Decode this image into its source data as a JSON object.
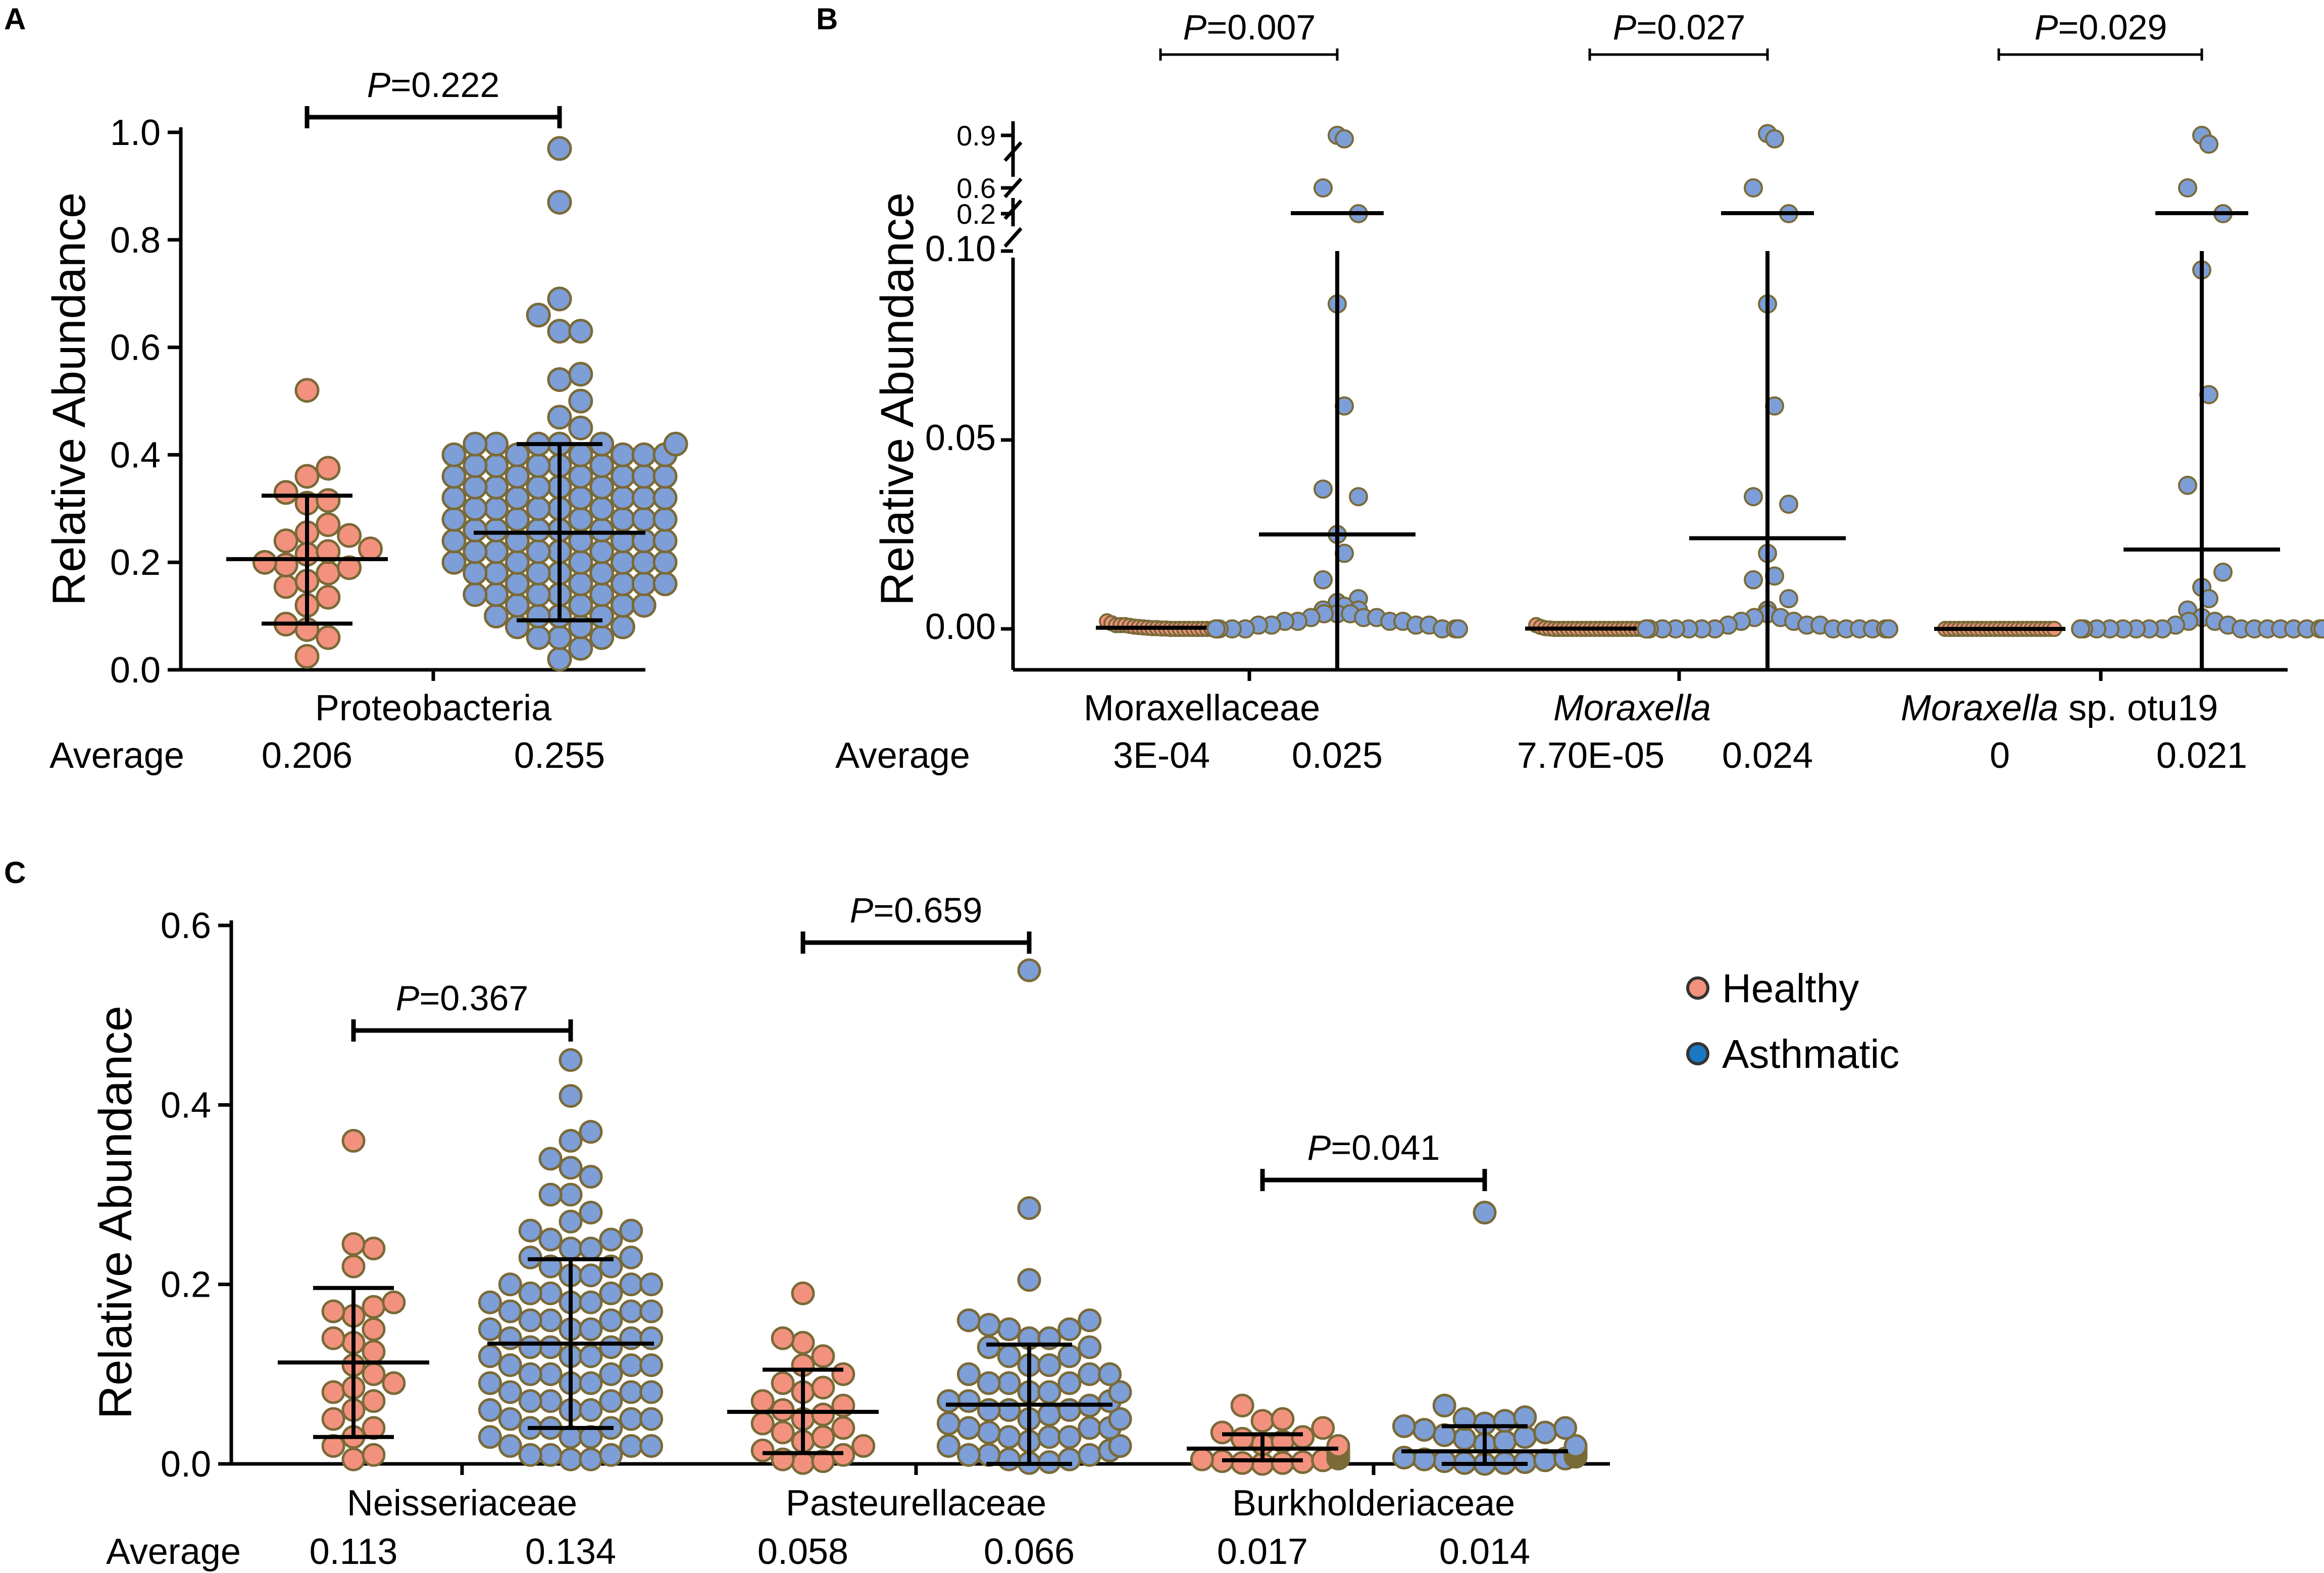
{
  "figure": {
    "colors": {
      "healthy": "#F2927E",
      "asthmatic": "#7D9ED6",
      "outline": "#7A6A38",
      "line": "#000000"
    }
  },
  "legend": {
    "healthy_label": "Healthy",
    "asthmatic_label": "Asthmatic"
  },
  "chart_data": [
    {
      "panel": "A",
      "type": "scatter",
      "title": "",
      "ylabel": "Relative Abundance",
      "ylim": [
        0,
        1.0
      ],
      "yticks": [
        "0.0",
        "0.2",
        "0.4",
        "0.6",
        "0.8",
        "1.0"
      ],
      "average_label": "Average",
      "categories": [
        {
          "name": "Proteobacteria",
          "pvalue": {
            "prefix": "P",
            "text": "=0.222"
          },
          "groups": [
            {
              "group": "Healthy",
              "average": "0.206",
              "mean": 0.206,
              "sd_low": 0.086,
              "sd_high": 0.324,
              "points": [
                0.52,
                0.375,
                0.36,
                0.33,
                0.315,
                0.31,
                0.27,
                0.255,
                0.25,
                0.24,
                0.225,
                0.22,
                0.215,
                0.2,
                0.195,
                0.19,
                0.18,
                0.165,
                0.155,
                0.135,
                0.12,
                0.085,
                0.075,
                0.06,
                0.025
              ]
            },
            {
              "group": "Asthmatic",
              "average": "0.255",
              "mean": 0.255,
              "sd_low": 0.092,
              "sd_high": 0.42,
              "points": [
                0.97,
                0.87,
                0.69,
                0.66,
                0.63,
                0.63,
                0.55,
                0.54,
                0.5,
                0.47,
                0.45,
                0.42,
                0.42,
                0.42,
                0.42,
                0.42,
                0.42,
                0.4,
                0.4,
                0.4,
                0.4,
                0.4,
                0.4,
                0.38,
                0.38,
                0.38,
                0.38,
                0.38,
                0.36,
                0.36,
                0.36,
                0.36,
                0.36,
                0.36,
                0.34,
                0.34,
                0.34,
                0.34,
                0.34,
                0.32,
                0.32,
                0.32,
                0.32,
                0.32,
                0.32,
                0.3,
                0.3,
                0.3,
                0.3,
                0.3,
                0.28,
                0.28,
                0.28,
                0.28,
                0.28,
                0.28,
                0.26,
                0.26,
                0.26,
                0.26,
                0.26,
                0.24,
                0.24,
                0.24,
                0.24,
                0.24,
                0.24,
                0.22,
                0.22,
                0.22,
                0.22,
                0.22,
                0.2,
                0.2,
                0.2,
                0.2,
                0.2,
                0.2,
                0.18,
                0.18,
                0.18,
                0.18,
                0.18,
                0.16,
                0.16,
                0.16,
                0.16,
                0.16,
                0.14,
                0.14,
                0.14,
                0.14,
                0.14,
                0.12,
                0.12,
                0.12,
                0.12,
                0.1,
                0.1,
                0.1,
                0.1,
                0.08,
                0.08,
                0.08,
                0.06,
                0.06,
                0.06,
                0.04,
                0.02
              ]
            }
          ]
        }
      ]
    },
    {
      "panel": "B",
      "type": "scatter",
      "title": "",
      "ylabel": "Relative Abundance",
      "ylim": [
        0,
        0.9
      ],
      "axis_break": "segmented: 0-0.10 linear, then 0.2, 0.6, 0.9",
      "yticks": [
        "0.00",
        "0.05",
        "0.10",
        "0.2",
        "0.6",
        "0.9"
      ],
      "average_label": "Average",
      "categories": [
        {
          "name": "Moraxellaceae",
          "italic": "",
          "suffix": "Moraxellaceae",
          "pvalue": {
            "prefix": "P",
            "text": "=0.007"
          },
          "groups": [
            {
              "group": "Healthy",
              "average": "3E-04",
              "mean": 0.0003,
              "sd_low": 0.0,
              "sd_high": 0.0006,
              "points": [
                0.002,
                0.0015,
                0.001,
                0.001,
                0.001,
                0.0008,
                0.0006,
                0.0005,
                0.0004,
                0.0003,
                0.0002,
                0.0002,
                0.0001,
                0.0001,
                0.0,
                0.0,
                0.0,
                0.0,
                0.0,
                0.0,
                0.0,
                0.0,
                0.0,
                0.0,
                0.0
              ]
            },
            {
              "group": "Asthmatic",
              "average": "0.025",
              "mean": 0.025,
              "sd_low": 0.0,
              "sd_high": 0.1,
              "points": [
                0.9,
                0.88,
                0.6,
                0.2,
                0.086,
                0.059,
                0.037,
                0.035,
                0.025,
                0.02,
                0.013,
                0.008,
                0.007,
                0.006,
                0.005,
                0.005,
                0.004,
                0.004,
                0.004,
                0.003,
                0.003,
                0.003,
                0.002,
                0.002,
                0.002,
                0.002,
                0.001,
                0.001,
                0.001,
                0.001,
                0.0,
                0.0,
                0.0,
                0.0,
                0.0,
                0.0,
                0.0,
                0.0,
                0.0,
                0.0
              ]
            }
          ]
        },
        {
          "name": "Moraxella",
          "italic": "Moraxella",
          "suffix": "",
          "pvalue": {
            "prefix": "P",
            "text": "=0.027"
          },
          "groups": [
            {
              "group": "Healthy",
              "average": "7.70E-05",
              "mean": 7.7e-05,
              "sd_low": 0.0,
              "sd_high": 0.0002,
              "points": [
                0.001,
                0.0005,
                0.0002,
                0.0001,
                0.0,
                0.0,
                0.0,
                0.0,
                0.0,
                0.0,
                0.0,
                0.0,
                0.0,
                0.0,
                0.0,
                0.0,
                0.0,
                0.0,
                0.0,
                0.0,
                0.0,
                0.0,
                0.0,
                0.0,
                0.0
              ]
            },
            {
              "group": "Asthmatic",
              "average": "0.024",
              "mean": 0.024,
              "sd_low": 0.0,
              "sd_high": 0.1,
              "points": [
                0.91,
                0.88,
                0.6,
                0.2,
                0.086,
                0.059,
                0.035,
                0.033,
                0.02,
                0.014,
                0.013,
                0.008,
                0.005,
                0.004,
                0.003,
                0.003,
                0.002,
                0.002,
                0.001,
                0.001,
                0.001,
                0.0,
                0.0,
                0.0,
                0.0,
                0.0,
                0.0,
                0.0,
                0.0,
                0.0,
                0.0,
                0.0,
                0.0,
                0.0,
                0.0,
                0.0,
                0.0,
                0.0,
                0.0,
                0.0
              ]
            }
          ]
        },
        {
          "name": "Moraxella sp. otu19",
          "italic": "Moraxella",
          "suffix": " sp. otu19",
          "pvalue": {
            "prefix": "P",
            "text": "=0.029"
          },
          "groups": [
            {
              "group": "Healthy",
              "average": "0",
              "mean": 0.0,
              "sd_low": 0.0,
              "sd_high": 0.0,
              "points": [
                0.0,
                0.0,
                0.0,
                0.0,
                0.0,
                0.0,
                0.0,
                0.0,
                0.0,
                0.0,
                0.0,
                0.0,
                0.0,
                0.0,
                0.0,
                0.0,
                0.0,
                0.0,
                0.0,
                0.0,
                0.0,
                0.0,
                0.0,
                0.0,
                0.0
              ]
            },
            {
              "group": "Asthmatic",
              "average": "0.021",
              "mean": 0.021,
              "sd_low": 0.0,
              "sd_high": 0.1,
              "points": [
                0.9,
                0.85,
                0.6,
                0.2,
                0.095,
                0.062,
                0.038,
                0.015,
                0.011,
                0.008,
                0.005,
                0.003,
                0.002,
                0.002,
                0.001,
                0.001,
                0.0,
                0.0,
                0.0,
                0.0,
                0.0,
                0.0,
                0.0,
                0.0,
                0.0,
                0.0,
                0.0,
                0.0,
                0.0,
                0.0,
                0.0,
                0.0,
                0.0,
                0.0,
                0.0,
                0.0
              ]
            }
          ]
        }
      ]
    },
    {
      "panel": "C",
      "type": "scatter",
      "title": "",
      "ylabel": "Relative Abundance",
      "ylim": [
        0,
        0.6
      ],
      "yticks": [
        "0.0",
        "0.2",
        "0.4",
        "0.6"
      ],
      "average_label": "Average",
      "legend_position": "top-right",
      "categories": [
        {
          "name": "Neisseriaceae",
          "pvalue": {
            "prefix": "P",
            "text": "=0.367"
          },
          "groups": [
            {
              "group": "Healthy",
              "average": "0.113",
              "mean": 0.113,
              "sd_low": 0.03,
              "sd_high": 0.196,
              "points": [
                0.36,
                0.245,
                0.24,
                0.22,
                0.18,
                0.175,
                0.17,
                0.165,
                0.15,
                0.14,
                0.135,
                0.125,
                0.11,
                0.1,
                0.09,
                0.085,
                0.08,
                0.07,
                0.06,
                0.05,
                0.04,
                0.03,
                0.02,
                0.01,
                0.005
              ]
            },
            {
              "group": "Asthmatic",
              "average": "0.134",
              "mean": 0.134,
              "sd_low": 0.04,
              "sd_high": 0.228,
              "points": [
                0.45,
                0.41,
                0.37,
                0.36,
                0.34,
                0.33,
                0.32,
                0.3,
                0.3,
                0.28,
                0.27,
                0.26,
                0.26,
                0.25,
                0.25,
                0.24,
                0.24,
                0.23,
                0.23,
                0.22,
                0.22,
                0.21,
                0.21,
                0.2,
                0.2,
                0.2,
                0.19,
                0.19,
                0.19,
                0.18,
                0.18,
                0.18,
                0.17,
                0.17,
                0.17,
                0.16,
                0.16,
                0.16,
                0.15,
                0.15,
                0.15,
                0.14,
                0.14,
                0.14,
                0.13,
                0.13,
                0.13,
                0.12,
                0.12,
                0.12,
                0.11,
                0.11,
                0.11,
                0.1,
                0.1,
                0.1,
                0.09,
                0.09,
                0.09,
                0.08,
                0.08,
                0.08,
                0.07,
                0.07,
                0.07,
                0.06,
                0.06,
                0.06,
                0.05,
                0.05,
                0.05,
                0.04,
                0.04,
                0.04,
                0.03,
                0.03,
                0.03,
                0.02,
                0.02,
                0.02,
                0.01,
                0.01,
                0.01,
                0.005,
                0.005
              ]
            }
          ]
        },
        {
          "name": "Pasteurellaceae",
          "pvalue": {
            "prefix": "P",
            "text": "=0.659"
          },
          "groups": [
            {
              "group": "Healthy",
              "average": "0.058",
              "mean": 0.058,
              "sd_low": 0.012,
              "sd_high": 0.105,
              "points": [
                0.19,
                0.14,
                0.135,
                0.12,
                0.11,
                0.1,
                0.09,
                0.085,
                0.08,
                0.07,
                0.065,
                0.06,
                0.055,
                0.05,
                0.045,
                0.04,
                0.035,
                0.03,
                0.025,
                0.02,
                0.015,
                0.01,
                0.005,
                0.003,
                0.001
              ]
            },
            {
              "group": "Asthmatic",
              "average": "0.066",
              "mean": 0.066,
              "sd_low": 0.0,
              "sd_high": 0.133,
              "points": [
                0.55,
                0.285,
                0.205,
                0.16,
                0.16,
                0.155,
                0.15,
                0.15,
                0.14,
                0.14,
                0.13,
                0.13,
                0.12,
                0.12,
                0.11,
                0.11,
                0.1,
                0.1,
                0.1,
                0.09,
                0.09,
                0.09,
                0.08,
                0.08,
                0.08,
                0.07,
                0.07,
                0.07,
                0.065,
                0.06,
                0.06,
                0.06,
                0.055,
                0.05,
                0.05,
                0.05,
                0.045,
                0.04,
                0.04,
                0.04,
                0.035,
                0.03,
                0.03,
                0.03,
                0.025,
                0.02,
                0.02,
                0.02,
                0.015,
                0.01,
                0.01,
                0.01,
                0.005,
                0.005,
                0.002,
                0.001
              ]
            }
          ]
        },
        {
          "name": "Burkholderiaceae",
          "pvalue": {
            "prefix": "P",
            "text": "=0.041"
          },
          "groups": [
            {
              "group": "Healthy",
              "average": "0.017",
              "mean": 0.017,
              "sd_low": 0.004,
              "sd_high": 0.033,
              "points": [
                0.065,
                0.05,
                0.048,
                0.04,
                0.035,
                0.03,
                0.028,
                0.025,
                0.022,
                0.02,
                0.018,
                0.016,
                0.015,
                0.012,
                0.01,
                0.008,
                0.007,
                0.006,
                0.005,
                0.004,
                0.003,
                0.002,
                0.001,
                0.001,
                0.0
              ]
            },
            {
              "group": "Asthmatic",
              "average": "0.014",
              "mean": 0.014,
              "sd_low": 0.0,
              "sd_high": 0.042,
              "points": [
                0.28,
                0.065,
                0.052,
                0.05,
                0.048,
                0.045,
                0.042,
                0.04,
                0.038,
                0.035,
                0.032,
                0.03,
                0.028,
                0.025,
                0.022,
                0.02,
                0.018,
                0.016,
                0.014,
                0.012,
                0.01,
                0.008,
                0.007,
                0.006,
                0.005,
                0.004,
                0.003,
                0.002,
                0.001,
                0.001,
                0.0
              ]
            }
          ]
        }
      ]
    }
  ]
}
